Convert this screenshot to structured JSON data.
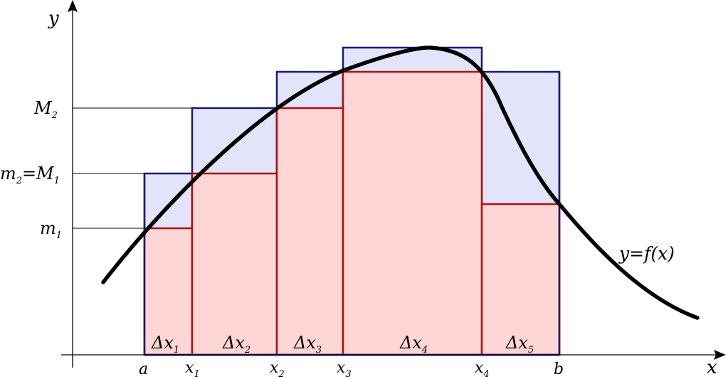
{
  "axes": {
    "x_label": "x",
    "y_label": "y"
  },
  "y_labels": [
    {
      "id": "m1",
      "base": "m",
      "sub": "1"
    },
    {
      "id": "m2M1",
      "base": "m",
      "sub": "2",
      "mid": "=M",
      "sub2": "1"
    },
    {
      "id": "M2",
      "base": "M",
      "sub": "2"
    }
  ],
  "x_labels": [
    {
      "id": "a",
      "base": "a",
      "sub": ""
    },
    {
      "id": "x1",
      "base": "x",
      "sub": "1"
    },
    {
      "id": "x2",
      "base": "x",
      "sub": "2"
    },
    {
      "id": "x3",
      "base": "x",
      "sub": "3"
    },
    {
      "id": "x4",
      "base": "x",
      "sub": "4"
    },
    {
      "id": "b",
      "base": "b",
      "sub": ""
    }
  ],
  "intervals": [
    {
      "base": "Δx",
      "sub": "1"
    },
    {
      "base": "Δx",
      "sub": "2"
    },
    {
      "base": "Δx",
      "sub": "3"
    },
    {
      "base": "Δx",
      "sub": "4"
    },
    {
      "base": "Δx",
      "sub": "5"
    }
  ],
  "curve_label": "y=f(x)",
  "colors": {
    "upper_fill": "#e3e4fa",
    "upper_stroke": "#1a1a7a",
    "lower_fill": "#ffd6d6",
    "lower_stroke": "#b01010",
    "curve": "#000000",
    "axis": "#000000"
  }
}
